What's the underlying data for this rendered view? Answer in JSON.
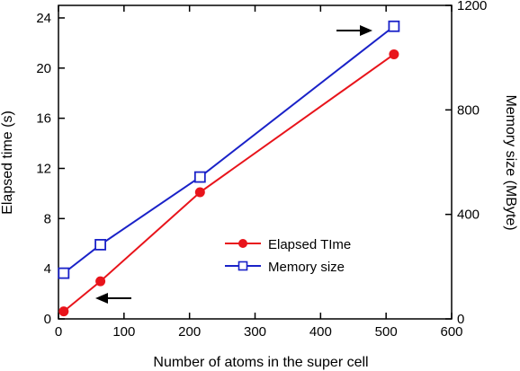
{
  "chart_data": {
    "type": "line",
    "xlabel": "Number of atoms in the super cell",
    "ylabel": "Elapsed time (s)",
    "y2label": "Memory size (MByte)",
    "xlim": [
      0,
      600
    ],
    "ylim": [
      0,
      25
    ],
    "y2lim": [
      0,
      1200
    ],
    "xticks": [
      0,
      100,
      200,
      300,
      400,
      500,
      600
    ],
    "yticks": [
      0,
      4,
      8,
      12,
      16,
      20,
      24
    ],
    "y2ticks": [
      0,
      400,
      800,
      1200
    ],
    "grid": false,
    "legend_position": "lower-right",
    "series": [
      {
        "name": "Elapsed TIme",
        "axis": "left",
        "color": "#e8141b",
        "marker": "filled-circle",
        "x": [
          8,
          64,
          216,
          512
        ],
        "y": [
          0.6,
          3.0,
          10.1,
          21.1
        ]
      },
      {
        "name": "Memory size",
        "axis": "right",
        "color": "#1a22c8",
        "marker": "open-square",
        "x": [
          8,
          64,
          216,
          512
        ],
        "y": [
          175,
          284,
          543,
          1120
        ]
      }
    ],
    "annotations": [
      {
        "type": "arrow",
        "direction": "left",
        "points_to": "left axis"
      },
      {
        "type": "arrow",
        "direction": "right",
        "points_to": "right axis"
      }
    ]
  }
}
